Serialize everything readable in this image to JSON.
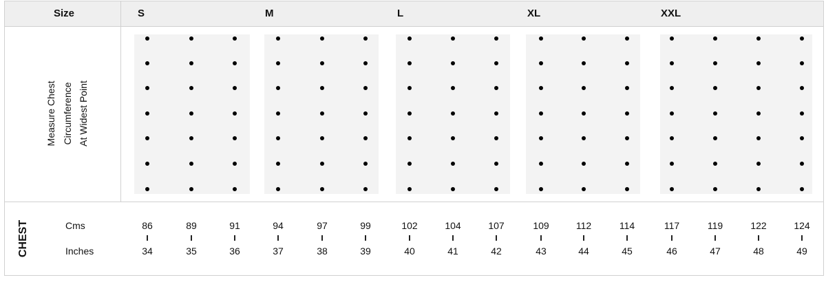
{
  "header": {
    "size_label": "Size"
  },
  "sizes": [
    {
      "label": "S",
      "columns": [
        {
          "cms": "86",
          "inches": "34"
        },
        {
          "cms": "89",
          "inches": "35"
        },
        {
          "cms": "91",
          "inches": "36"
        }
      ]
    },
    {
      "label": "M",
      "columns": [
        {
          "cms": "94",
          "inches": "37"
        },
        {
          "cms": "97",
          "inches": "38"
        },
        {
          "cms": "99",
          "inches": "39"
        }
      ]
    },
    {
      "label": "L",
      "columns": [
        {
          "cms": "102",
          "inches": "40"
        },
        {
          "cms": "104",
          "inches": "41"
        },
        {
          "cms": "107",
          "inches": "42"
        }
      ]
    },
    {
      "label": "XL",
      "columns": [
        {
          "cms": "109",
          "inches": "43"
        },
        {
          "cms": "112",
          "inches": "44"
        },
        {
          "cms": "114",
          "inches": "45"
        }
      ]
    },
    {
      "label": "XXL",
      "columns": [
        {
          "cms": "117",
          "inches": "46"
        },
        {
          "cms": "119",
          "inches": "47"
        },
        {
          "cms": "122",
          "inches": "48"
        },
        {
          "cms": "124",
          "inches": "49"
        }
      ]
    }
  ],
  "instruction": {
    "lines": [
      "Measure Chest",
      "Circumference",
      "At Widest Point"
    ]
  },
  "chest": {
    "title": "CHEST",
    "cms_label": "Cms",
    "inches_label": "Inches"
  }
}
